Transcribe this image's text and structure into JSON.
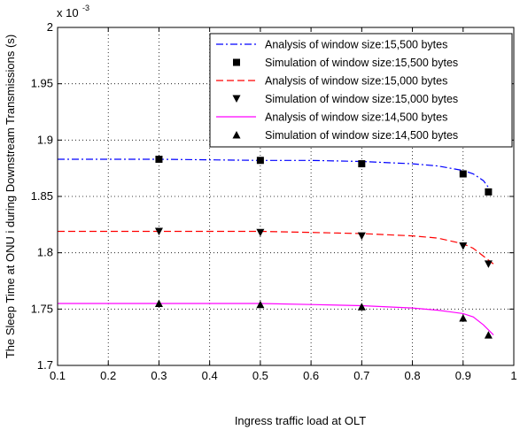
{
  "chart_data": {
    "type": "line",
    "xlabel": "Ingress traffic load at OLT",
    "ylabel": "The Sleep Time at ONU i during Downstream Transmissions (s)",
    "y_multiplier_label": "x 10",
    "y_multiplier_exponent": "-3",
    "xlim": [
      0.1,
      1.0
    ],
    "ylim": [
      1.7,
      2.0
    ],
    "x_ticks": [
      "0.1",
      "0.2",
      "0.3",
      "0.4",
      "0.5",
      "0.6",
      "0.7",
      "0.8",
      "0.9",
      "1"
    ],
    "y_ticks": [
      "1.7",
      "1.75",
      "1.8",
      "1.85",
      "1.9",
      "1.95",
      "2"
    ],
    "grid": true,
    "legend_position": "top-right",
    "series": [
      {
        "name": "Analysis of window size:15,500 bytes",
        "kind": "line",
        "style": "dashdot",
        "color": "#0000ff",
        "x": [
          0.1,
          0.3,
          0.5,
          0.6,
          0.7,
          0.8,
          0.85,
          0.9,
          0.92,
          0.94,
          0.95
        ],
        "y": [
          1.883,
          1.883,
          1.882,
          1.882,
          1.881,
          1.879,
          1.877,
          1.873,
          1.87,
          1.864,
          1.858
        ]
      },
      {
        "name": "Simulation of window size:15,500 bytes",
        "kind": "marker",
        "marker": "square",
        "color": "#000000",
        "x": [
          0.3,
          0.5,
          0.7,
          0.9,
          0.95
        ],
        "y": [
          1.883,
          1.882,
          1.879,
          1.87,
          1.854
        ]
      },
      {
        "name": "Analysis of window size:15,000 bytes",
        "kind": "line",
        "style": "dashed",
        "color": "#ff0000",
        "x": [
          0.1,
          0.3,
          0.5,
          0.6,
          0.7,
          0.8,
          0.85,
          0.9,
          0.92,
          0.94,
          0.96
        ],
        "y": [
          1.819,
          1.819,
          1.819,
          1.818,
          1.817,
          1.815,
          1.813,
          1.808,
          1.804,
          1.797,
          1.79
        ]
      },
      {
        "name": "Simulation of window size:15,000 bytes",
        "kind": "marker",
        "marker": "triangle-down",
        "color": "#000000",
        "x": [
          0.3,
          0.5,
          0.7,
          0.9,
          0.95
        ],
        "y": [
          1.819,
          1.818,
          1.815,
          1.806,
          1.79
        ]
      },
      {
        "name": "Analysis of window size:14,500 bytes",
        "kind": "line",
        "style": "solid",
        "color": "#ff00ff",
        "x": [
          0.1,
          0.3,
          0.5,
          0.6,
          0.7,
          0.8,
          0.85,
          0.9,
          0.92,
          0.94,
          0.96
        ],
        "y": [
          1.755,
          1.755,
          1.755,
          1.754,
          1.753,
          1.751,
          1.749,
          1.746,
          1.743,
          1.736,
          1.727
        ]
      },
      {
        "name": "Simulation of window size:14,500 bytes",
        "kind": "marker",
        "marker": "triangle-up",
        "color": "#000000",
        "x": [
          0.3,
          0.5,
          0.7,
          0.9,
          0.95
        ],
        "y": [
          1.755,
          1.754,
          1.752,
          1.742,
          1.727
        ]
      }
    ]
  }
}
